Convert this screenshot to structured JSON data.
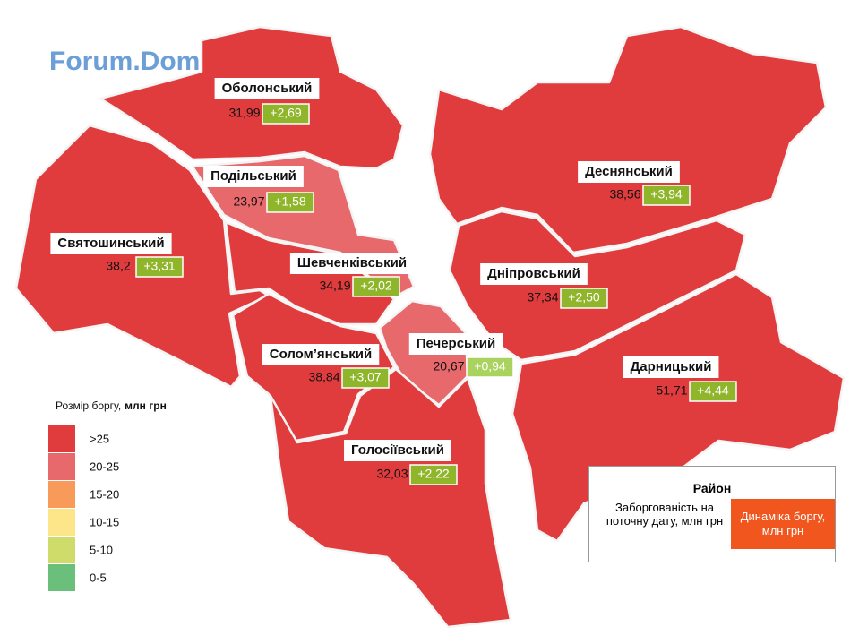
{
  "watermark": "Forum.Domik.ua",
  "districts": [
    {
      "name": "Оболонський",
      "debt": "31,99",
      "change": "+2,69",
      "color": "#e03c3e"
    },
    {
      "name": "Подільський",
      "debt": "23,97",
      "change": "+1,58",
      "color": "#e8696c"
    },
    {
      "name": "Святошинський",
      "debt": "38,2",
      "change": "+3,31",
      "color": "#e03c3e"
    },
    {
      "name": "Шевченківський",
      "debt": "34,19",
      "change": "+2,02",
      "color": "#e03c3e"
    },
    {
      "name": "Солом’янський",
      "debt": "38,84",
      "change": "+3,07",
      "color": "#e03c3e"
    },
    {
      "name": "Печерський",
      "debt": "20,67",
      "change": "+0,94",
      "color": "#e8696c"
    },
    {
      "name": "Голосіївський",
      "debt": "32,03",
      "change": "+2,22",
      "color": "#e03c3e"
    },
    {
      "name": "Деснянський",
      "debt": "38,56",
      "change": "+3,94",
      "color": "#e03c3e"
    },
    {
      "name": "Дніпровський",
      "debt": "37,34",
      "change": "+2,50",
      "color": "#e03c3e"
    },
    {
      "name": "Дарницький",
      "debt": "51,71",
      "change": "+4,44",
      "color": "#e03c3e"
    }
  ],
  "legend": {
    "title": "Розмір боргу,",
    "title_unit": "млн грн",
    "items": [
      {
        "label": ">25",
        "color": "#e03c3e"
      },
      {
        "label": "20-25",
        "color": "#e8696c"
      },
      {
        "label": "15-20",
        "color": "#f79a5a"
      },
      {
        "label": "10-15",
        "color": "#fde68a"
      },
      {
        "label": "5-10",
        "color": "#cfdc6a"
      },
      {
        "label": "0-5",
        "color": "#6abf7a"
      }
    ]
  },
  "info_box": {
    "title": "Район",
    "debt_label": "Заборгованість на поточну дату, млн грн",
    "change_label": "Динаміка боргу, млн грн"
  }
}
